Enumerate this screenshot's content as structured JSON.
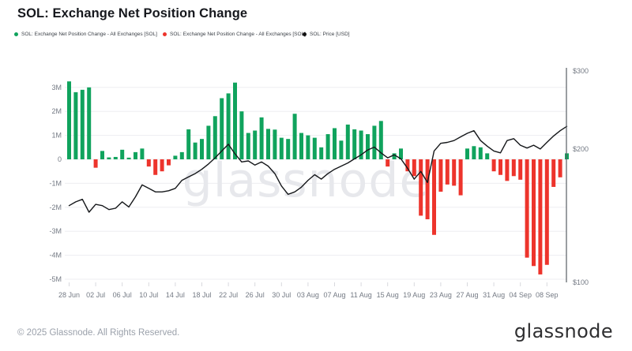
{
  "title": "SOL: Exchange Net Position Change",
  "legend": {
    "items": [
      {
        "label": "SOL: Exchange Net Position Change - All Exchanges [SOL]",
        "color": "#10A35D",
        "x": 18
      },
      {
        "label": "SOL: Exchange Net Position Change - All Exchanges [SOL]",
        "color": "#ED342C",
        "x": 206
      },
      {
        "label": "SOL: Price [USD]",
        "color": "#111111",
        "x": 383
      }
    ]
  },
  "watermark": "glassnode",
  "footer": {
    "copyright": "© 2025 Glassnode. All Rights Reserved.",
    "logo": "glassnode"
  },
  "chart_data": {
    "type": "bar",
    "x": [
      "28 Jun",
      "29 Jun",
      "30 Jun",
      "01 Jul",
      "02 Jul",
      "03 Jul",
      "04 Jul",
      "05 Jul",
      "06 Jul",
      "07 Jul",
      "08 Jul",
      "09 Jul",
      "10 Jul",
      "11 Jul",
      "12 Jul",
      "13 Jul",
      "14 Jul",
      "15 Jul",
      "16 Jul",
      "17 Jul",
      "18 Jul",
      "19 Jul",
      "20 Jul",
      "21 Jul",
      "22 Jul",
      "23 Jul",
      "24 Jul",
      "25 Jul",
      "26 Jul",
      "27 Jul",
      "28 Jul",
      "29 Jul",
      "30 Jul",
      "31 Jul",
      "01 Aug",
      "02 Aug",
      "03 Aug",
      "04 Aug",
      "05 Aug",
      "06 Aug",
      "07 Aug",
      "08 Aug",
      "09 Aug",
      "10 Aug",
      "11 Aug",
      "12 Aug",
      "13 Aug",
      "14 Aug",
      "15 Aug",
      "16 Aug",
      "17 Aug",
      "18 Aug",
      "19 Aug",
      "20 Aug",
      "21 Aug",
      "22 Aug",
      "23 Aug",
      "24 Aug",
      "25 Aug",
      "26 Aug",
      "27 Aug",
      "28 Aug",
      "29 Aug",
      "30 Aug",
      "31 Aug",
      "01 Sep",
      "02 Sep",
      "03 Sep",
      "04 Sep",
      "05 Sep",
      "06 Sep",
      "07 Sep",
      "08 Sep",
      "09 Sep",
      "10 Sep",
      "11 Sep"
    ],
    "series": [
      {
        "name": "SOL: Exchange Net Position Change - All Exchanges [SOL]",
        "type": "bar",
        "unit": "M SOL",
        "values": [
          3.25,
          2.8,
          2.9,
          3.0,
          -0.35,
          0.35,
          0.08,
          0.1,
          0.4,
          0.07,
          0.3,
          0.45,
          -0.3,
          -0.65,
          -0.5,
          -0.25,
          0.15,
          0.3,
          1.25,
          0.7,
          0.85,
          1.4,
          1.8,
          2.55,
          2.75,
          3.2,
          2.0,
          1.1,
          1.2,
          1.75,
          1.27,
          1.24,
          0.9,
          0.85,
          1.9,
          1.1,
          1.0,
          0.9,
          0.5,
          1.05,
          1.3,
          0.78,
          1.45,
          1.25,
          1.2,
          1.05,
          1.4,
          1.6,
          -0.3,
          0.25,
          0.45,
          -0.5,
          -0.7,
          -2.35,
          -2.5,
          -3.15,
          -1.35,
          -1.05,
          -1.1,
          -1.5,
          0.45,
          0.55,
          0.5,
          0.25,
          -0.5,
          -0.65,
          -0.9,
          -0.7,
          -0.85,
          -4.1,
          -4.45,
          -4.8,
          -4.4,
          -1.15,
          -0.75,
          0.25
        ]
      },
      {
        "name": "SOL: Price [USD]",
        "type": "line",
        "axis": "right",
        "unit": "USD",
        "values": [
          149,
          152,
          154,
          144,
          150,
          149,
          146,
          147,
          152,
          148,
          156,
          166,
          163,
          160,
          160,
          161,
          163,
          170,
          173,
          176,
          180,
          185,
          191,
          198,
          205,
          195,
          187,
          188,
          184,
          187,
          183,
          176,
          165,
          158,
          160,
          164,
          170,
          175,
          171,
          176,
          180,
          183,
          186,
          190,
          194,
          199,
          202,
          196,
          191,
          194,
          190,
          181,
          171,
          178,
          168,
          198,
          206,
          207,
          209,
          213,
          217,
          220,
          209,
          203,
          198,
          196,
          209,
          211,
          204,
          201,
          204,
          200,
          207,
          214,
          220,
          225
        ]
      }
    ],
    "left_axis": {
      "title": "",
      "unit": "SOL",
      "ticks": [
        {
          "label": "3M",
          "value": 3
        },
        {
          "label": "2M",
          "value": 2
        },
        {
          "label": "1M",
          "value": 1
        },
        {
          "label": "0",
          "value": 0
        },
        {
          "label": "-1M",
          "value": -1
        },
        {
          "label": "-2M",
          "value": -2
        },
        {
          "label": "-3M",
          "value": -3
        },
        {
          "label": "-4M",
          "value": -4
        },
        {
          "label": "-5M",
          "value": -5
        }
      ],
      "range_millions": [
        -5,
        3.4
      ],
      "grid": true
    },
    "right_axis": {
      "title": "",
      "unit": "USD",
      "scale": "log",
      "ticks": [
        {
          "label": "$300",
          "value": 300
        },
        {
          "label": "$200",
          "value": 200
        },
        {
          "label": "$100",
          "value": 100
        }
      ],
      "range": [
        100,
        300
      ]
    },
    "x_ticks": [
      "28 Jun",
      "02 Jul",
      "06 Jul",
      "10 Jul",
      "14 Jul",
      "18 Jul",
      "22 Jul",
      "26 Jul",
      "30 Jul",
      "03 Aug",
      "07 Aug",
      "11 Aug",
      "15 Aug",
      "19 Aug",
      "23 Aug",
      "27 Aug",
      "31 Aug",
      "04 Sep",
      "08 Sep"
    ],
    "x_tick_interval_days": 4,
    "colors": {
      "positive": "#10A35D",
      "negative": "#ED342C",
      "price": "#15171A",
      "grid": "#ededf1",
      "axis_line": "#585d63",
      "tick_text": "#747a84",
      "watermark": "#e7e8ec"
    },
    "legend_position": "top-left"
  }
}
